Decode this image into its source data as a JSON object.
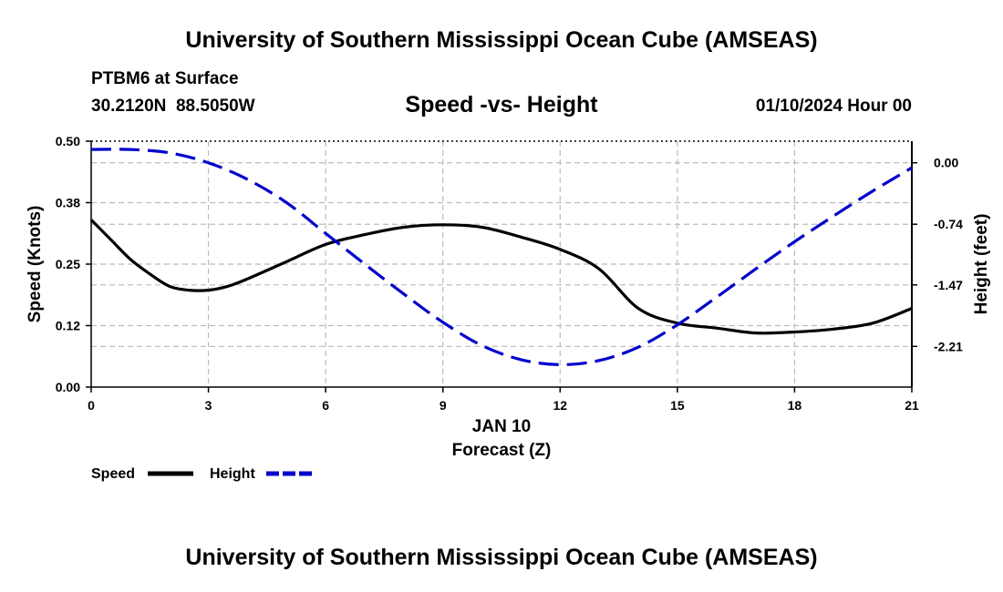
{
  "page": {
    "top_title": "University of Southern Mississippi Ocean Cube (AMSEAS)",
    "bottom_title": "University of Southern Mississippi Ocean Cube (AMSEAS)",
    "station": "PTBM6 at Surface",
    "coords": "30.2120N  88.5050W",
    "date": "01/10/2024 Hour 00"
  },
  "chart_data": {
    "type": "line",
    "title": "Speed -vs- Height",
    "xlabel": "Forecast (Z)",
    "xlabel_date": "JAN 10",
    "ylabel_left": "Speed (Knots)",
    "ylabel_right": "Height (feet)",
    "xlim": [
      0,
      21
    ],
    "ylim_left": [
      0,
      0.5
    ],
    "ylim_right": [
      -2.7,
      0.26
    ],
    "x_ticks": [
      0,
      3,
      6,
      9,
      12,
      15,
      18,
      21
    ],
    "x_tick_labels": [
      "0",
      "3",
      "6",
      "9",
      "12",
      "15",
      "18",
      "21"
    ],
    "left_ticks": [
      0.0,
      0.125,
      0.25,
      0.375,
      0.5
    ],
    "left_tick_labels": [
      "0.00",
      "0.12",
      "0.25",
      "0.38",
      "0.50"
    ],
    "right_ticks": [
      0.0,
      -0.74,
      -1.47,
      -2.21
    ],
    "right_tick_labels": [
      "0.00",
      "-0.74",
      "-1.47",
      "-2.21"
    ],
    "grid": true,
    "legend_position": "bottom-left",
    "series": [
      {
        "name": "Speed",
        "axis": "left",
        "color": "#000000",
        "style": "solid",
        "x": [
          0,
          0.5,
          1,
          1.5,
          2,
          2.5,
          3,
          3.5,
          4,
          5,
          6,
          7,
          8,
          9,
          10,
          11,
          12,
          13,
          14,
          15,
          16,
          17,
          18,
          19,
          20,
          21
        ],
        "values": [
          0.34,
          0.3,
          0.26,
          0.23,
          0.205,
          0.197,
          0.197,
          0.205,
          0.22,
          0.255,
          0.29,
          0.31,
          0.325,
          0.33,
          0.325,
          0.305,
          0.28,
          0.24,
          0.16,
          0.13,
          0.12,
          0.11,
          0.112,
          0.118,
          0.13,
          0.16
        ]
      },
      {
        "name": "Height",
        "axis": "right",
        "color": "#0000cc",
        "style": "dashed",
        "x": [
          0,
          1,
          2,
          3,
          4,
          5,
          6,
          7,
          8,
          9,
          10,
          11,
          12,
          13,
          14,
          15,
          16,
          17,
          18,
          19,
          20,
          21
        ],
        "values": [
          0.16,
          0.16,
          0.12,
          0.0,
          -0.2,
          -0.48,
          -0.85,
          -1.22,
          -1.58,
          -1.92,
          -2.2,
          -2.37,
          -2.43,
          -2.38,
          -2.22,
          -1.95,
          -1.62,
          -1.28,
          -0.95,
          -0.64,
          -0.34,
          -0.06
        ]
      }
    ]
  }
}
